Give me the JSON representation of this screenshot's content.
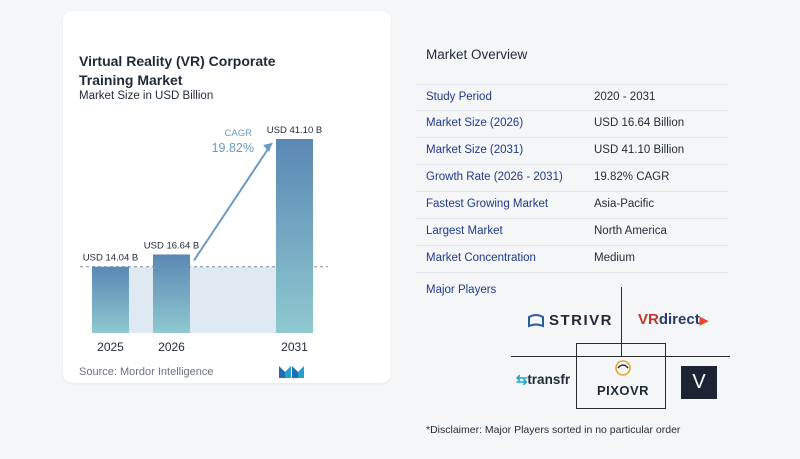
{
  "chart": {
    "title": "Virtual Reality (VR) Corporate Training Market",
    "subtitle": "Market Size in USD Billion",
    "source": "Source:  Mordor Intelligence",
    "cagr_label": "CAGR",
    "cagr_value": "19.82%",
    "colors": {
      "bar": "#6a9bc3",
      "bar_top": "#5a88b4",
      "bar_bottom": "#8fc9d0",
      "band": "#dfe9f2",
      "arrow": "#6a9bc3"
    }
  },
  "chart_data": {
    "type": "bar",
    "categories": [
      "2025",
      "2026",
      "2031"
    ],
    "values": [
      14.04,
      16.64,
      41.1
    ],
    "value_labels": [
      "USD 14.04 B",
      "USD 16.64 B",
      "USD 41.10 B"
    ],
    "title": "Virtual Reality (VR) Corporate Training Market",
    "subtitle": "Market Size in USD Billion",
    "annotation": "CAGR 19.82%",
    "ylim": [
      0,
      41.1
    ],
    "grid": false
  },
  "overview": {
    "title": "Market Overview",
    "rows": [
      {
        "label": "Study Period",
        "value": "2020 - 2031"
      },
      {
        "label": "Market Size (2026)",
        "value": "USD 16.64 Billion"
      },
      {
        "label": "Market Size (2031)",
        "value": "USD 41.10 Billion"
      },
      {
        "label": "Growth Rate (2026 - 2031)",
        "value": "19.82% CAGR"
      },
      {
        "label": "Fastest Growing Market",
        "value": "Asia-Pacific"
      },
      {
        "label": "Largest Market",
        "value": "North America"
      },
      {
        "label": "Market Concentration",
        "value": "Medium"
      }
    ]
  },
  "players": {
    "title": "Major Players",
    "logos": {
      "strivr": "STRIVR",
      "vrdirect_vr": "VR",
      "vrdirect_direct": "direct",
      "transfr": "transfr",
      "pixovr": "PIXOVR",
      "v_logo": "V"
    },
    "disclaimer": "*Disclaimer: Major Players sorted in no particular order"
  }
}
